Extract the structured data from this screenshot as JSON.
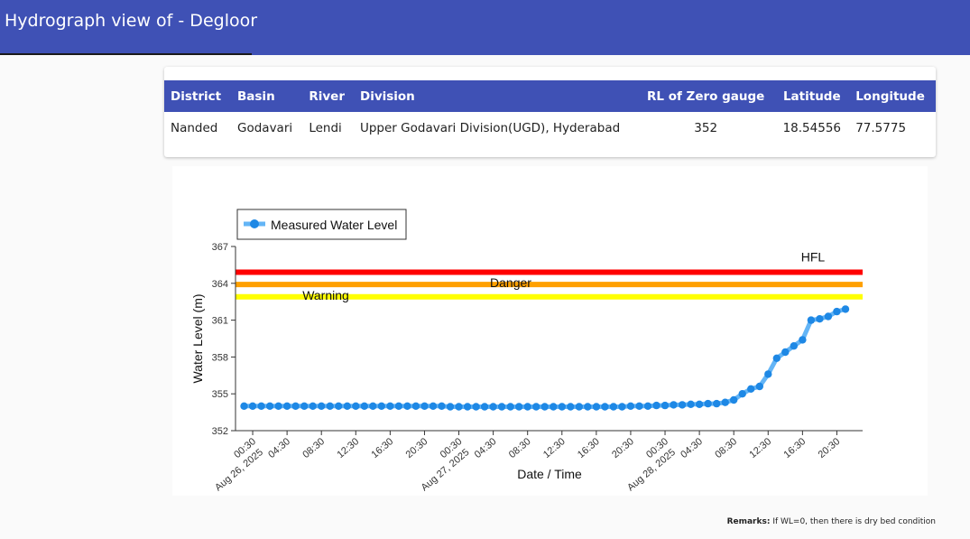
{
  "header": {
    "title": "Hydrograph view of - Degloor"
  },
  "station_table": {
    "columns": [
      "District",
      "Basin",
      "River",
      "Division",
      "RL of Zero gauge",
      "Latitude",
      "Longitude"
    ],
    "row": [
      "Nanded",
      "Godavari",
      "Lendi",
      "Upper Godavari Division(UGD), Hyderabad",
      "352",
      "18.54556",
      "77.5775"
    ]
  },
  "colors": {
    "header_bg": "#3f51b5",
    "series": "#1e88e5",
    "series_line": "#64b5f6",
    "hfl": "#ff0000",
    "danger": "#ffa000",
    "warning": "#ffff00"
  },
  "chart_data": {
    "type": "line",
    "xlabel": "Date / Time",
    "ylabel": "Water Level (m)",
    "ylim": [
      352,
      367
    ],
    "yticks": [
      352,
      355,
      358,
      361,
      364,
      367
    ],
    "legend": {
      "label": "Measured Water Level",
      "placement": "top-left"
    },
    "grid": false,
    "x_tick_labels": [
      {
        "t": 0,
        "label": "00:30",
        "date": "Aug 26, 2025"
      },
      {
        "t": 4,
        "label": "04:30"
      },
      {
        "t": 8,
        "label": "08:30"
      },
      {
        "t": 12,
        "label": "12:30"
      },
      {
        "t": 16,
        "label": "16:30"
      },
      {
        "t": 20,
        "label": "20:30"
      },
      {
        "t": 24,
        "label": "00:30",
        "date": "Aug 27, 2025"
      },
      {
        "t": 28,
        "label": "04:30"
      },
      {
        "t": 32,
        "label": "08:30"
      },
      {
        "t": 36,
        "label": "12:30"
      },
      {
        "t": 40,
        "label": "16:30"
      },
      {
        "t": 44,
        "label": "20:30"
      },
      {
        "t": 48,
        "label": "00:30",
        "date": "Aug 28, 2025"
      },
      {
        "t": 52,
        "label": "04:30"
      },
      {
        "t": 56,
        "label": "08:30"
      },
      {
        "t": 60,
        "label": "12:30"
      },
      {
        "t": 64,
        "label": "16:30"
      },
      {
        "t": 68,
        "label": "20:30"
      }
    ],
    "reference_lines": [
      {
        "name": "HFL",
        "value": 364.9
      },
      {
        "name": "Danger",
        "value": 363.9
      },
      {
        "name": "Warning",
        "value": 362.9
      }
    ],
    "series": [
      {
        "name": "Measured Water Level",
        "points": [
          [
            -1,
            354.0
          ],
          [
            0,
            354.0
          ],
          [
            1,
            354.0
          ],
          [
            2,
            354.0
          ],
          [
            3,
            354.0
          ],
          [
            4,
            354.0
          ],
          [
            5,
            354.0
          ],
          [
            6,
            354.0
          ],
          [
            7,
            354.0
          ],
          [
            8,
            354.0
          ],
          [
            9,
            354.0
          ],
          [
            10,
            354.0
          ],
          [
            11,
            354.0
          ],
          [
            12,
            354.0
          ],
          [
            13,
            354.0
          ],
          [
            14,
            354.0
          ],
          [
            15,
            354.0
          ],
          [
            16,
            354.0
          ],
          [
            17,
            354.0
          ],
          [
            18,
            354.0
          ],
          [
            19,
            354.0
          ],
          [
            20,
            354.0
          ],
          [
            21,
            354.0
          ],
          [
            22,
            354.0
          ],
          [
            23,
            353.95
          ],
          [
            24,
            353.95
          ],
          [
            25,
            353.95
          ],
          [
            26,
            353.95
          ],
          [
            27,
            353.95
          ],
          [
            28,
            353.95
          ],
          [
            29,
            353.95
          ],
          [
            30,
            353.95
          ],
          [
            31,
            353.95
          ],
          [
            32,
            353.95
          ],
          [
            33,
            353.95
          ],
          [
            34,
            353.95
          ],
          [
            35,
            353.95
          ],
          [
            36,
            353.95
          ],
          [
            37,
            353.95
          ],
          [
            38,
            353.95
          ],
          [
            39,
            353.95
          ],
          [
            40,
            353.95
          ],
          [
            41,
            353.95
          ],
          [
            42,
            353.95
          ],
          [
            43,
            353.95
          ],
          [
            44,
            354.0
          ],
          [
            45,
            354.0
          ],
          [
            46,
            354.0
          ],
          [
            47,
            354.05
          ],
          [
            48,
            354.05
          ],
          [
            49,
            354.1
          ],
          [
            50,
            354.1
          ],
          [
            51,
            354.15
          ],
          [
            52,
            354.15
          ],
          [
            53,
            354.2
          ],
          [
            54,
            354.2
          ],
          [
            55,
            354.3
          ],
          [
            56,
            354.5
          ],
          [
            57,
            355.0
          ],
          [
            58,
            355.4
          ],
          [
            59,
            355.6
          ],
          [
            60,
            356.6
          ],
          [
            61,
            357.9
          ],
          [
            62,
            358.4
          ],
          [
            63,
            358.9
          ],
          [
            64,
            359.4
          ],
          [
            65,
            361.0
          ],
          [
            66,
            361.1
          ],
          [
            67,
            361.3
          ],
          [
            68,
            361.7
          ],
          [
            69,
            361.9
          ]
        ]
      }
    ]
  },
  "remarks": {
    "label": "Remarks:",
    "text": "If WL=0, then there is dry bed condition"
  }
}
